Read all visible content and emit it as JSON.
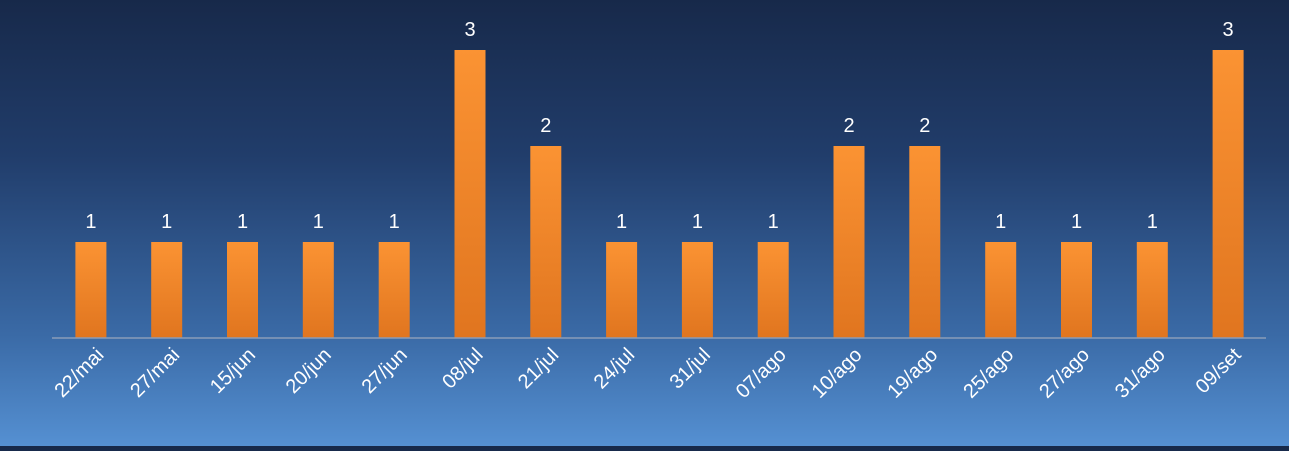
{
  "chart_data": {
    "type": "bar",
    "categories": [
      "22/mai",
      "27/mai",
      "15/jun",
      "20/jun",
      "27/jun",
      "08/jul",
      "21/jul",
      "24/jul",
      "31/jul",
      "07/ago",
      "10/ago",
      "19/ago",
      "25/ago",
      "27/ago",
      "31/ago",
      "09/set"
    ],
    "values": [
      1,
      1,
      1,
      1,
      1,
      3,
      2,
      1,
      1,
      1,
      2,
      2,
      1,
      1,
      1,
      3
    ],
    "data_labels": [
      "1",
      "1",
      "1",
      "1",
      "1",
      "3",
      "2",
      "1",
      "1",
      "1",
      "2",
      "2",
      "1",
      "1",
      "1",
      "3"
    ],
    "title": "",
    "xlabel": "",
    "ylabel": "",
    "ylim": [
      0,
      3
    ],
    "grid": false,
    "legend": "none",
    "colors": {
      "bar_top": "#fb9333",
      "bar_bottom": "#e0751f",
      "axis": "#8a9cb8",
      "text": "#ffffff"
    }
  }
}
